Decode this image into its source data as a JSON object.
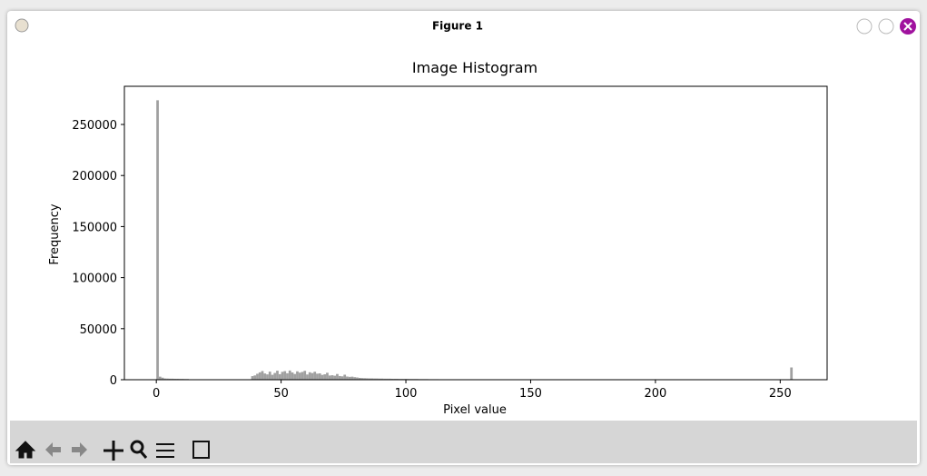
{
  "window": {
    "title": "Figure 1"
  },
  "chart_data": {
    "type": "histogram",
    "title": "Image Histogram",
    "x_label": "Pixel value",
    "y_label": "Frequency",
    "color": "#a0a0a0",
    "bins": [
      0,
      1,
      2,
      3,
      4,
      5,
      6,
      7,
      8,
      9,
      10,
      11,
      12,
      13,
      14,
      15,
      16,
      17,
      18,
      19,
      20,
      21,
      22,
      23,
      24,
      25,
      26,
      27,
      28,
      29,
      30,
      31,
      32,
      33,
      34,
      35,
      36,
      37,
      38,
      39,
      40,
      41,
      42,
      43,
      44,
      45,
      46,
      47,
      48,
      49,
      50,
      51,
      52,
      53,
      54,
      55,
      56,
      57,
      58,
      59,
      60,
      61,
      62,
      63,
      64,
      65,
      66,
      67,
      68,
      69,
      70,
      71,
      72,
      73,
      74,
      75,
      76,
      77,
      78,
      79,
      80,
      81,
      82,
      83,
      84,
      85,
      86,
      87,
      88,
      89,
      90,
      91,
      92,
      93,
      94,
      95,
      96,
      97,
      98,
      99,
      100,
      101,
      102,
      103,
      104,
      105,
      106,
      107,
      108,
      109,
      110,
      111,
      112,
      113,
      114,
      115,
      116,
      117,
      118,
      119,
      120,
      121,
      122,
      123,
      124,
      125,
      126,
      127,
      128,
      129,
      130,
      131,
      132,
      133,
      134,
      135,
      136,
      137,
      138,
      139,
      140,
      141,
      142,
      143,
      144,
      145,
      146,
      147,
      148,
      149,
      150,
      151,
      152,
      153,
      154,
      155,
      156,
      157,
      158,
      159,
      160,
      161,
      162,
      163,
      164,
      165,
      166,
      167,
      168,
      169,
      170,
      171,
      172,
      173,
      174,
      175,
      176,
      177,
      178,
      179,
      180,
      181,
      182,
      183,
      184,
      185,
      186,
      187,
      188,
      189,
      190,
      191,
      192,
      193,
      194,
      195,
      196,
      197,
      198,
      199,
      200,
      201,
      202,
      203,
      204,
      205,
      206,
      207,
      208,
      209,
      210,
      211,
      212,
      213,
      214,
      215,
      216,
      217,
      218,
      219,
      220,
      221,
      222,
      223,
      224,
      225,
      226,
      227,
      228,
      229,
      230,
      231,
      232,
      233,
      234,
      235,
      236,
      237,
      238,
      239,
      240,
      241,
      242,
      243,
      244,
      245,
      246,
      247,
      248,
      249,
      250,
      251,
      252,
      253,
      254,
      255,
      256
    ],
    "values": [
      273700,
      3000,
      2000,
      1200,
      1100,
      1000,
      1000,
      900,
      900,
      800,
      800,
      700,
      700,
      300,
      300,
      300,
      300,
      300,
      300,
      300,
      300,
      300,
      300,
      300,
      300,
      300,
      300,
      300,
      300,
      300,
      300,
      300,
      300,
      300,
      300,
      300,
      300,
      300,
      3500,
      4200,
      5800,
      7200,
      8500,
      6100,
      5200,
      7900,
      4800,
      6600,
      8800,
      5400,
      7700,
      8400,
      6300,
      9000,
      7100,
      5600,
      8200,
      6900,
      7600,
      8700,
      5100,
      7300,
      6500,
      7800,
      5900,
      6200,
      4700,
      5300,
      6800,
      4100,
      4400,
      3900,
      5600,
      3600,
      3300,
      4900,
      3100,
      2800,
      3000,
      2500,
      2200,
      1800,
      1600,
      1500,
      1400,
      1300,
      1300,
      1200,
      1200,
      1100,
      1100,
      1000,
      1000,
      1000,
      900,
      900,
      900,
      800,
      800,
      800,
      800,
      700,
      700,
      700,
      700,
      600,
      600,
      600,
      600,
      500,
      500,
      500,
      500,
      100,
      100,
      100,
      100,
      100,
      100,
      100,
      100,
      100,
      100,
      100,
      100,
      100,
      100,
      100,
      100,
      100,
      100,
      100,
      100,
      100,
      100,
      100,
      100,
      100,
      100,
      100,
      100,
      100,
      100,
      100,
      100,
      100,
      100,
      100,
      100,
      100,
      100,
      100,
      100,
      100,
      100,
      100,
      100,
      100,
      100,
      100,
      100,
      100,
      100,
      100,
      100,
      100,
      100,
      100,
      100,
      100,
      100,
      100,
      100,
      100,
      100,
      100,
      100,
      100,
      100,
      100,
      100,
      100,
      100,
      100,
      100,
      100,
      100,
      100,
      100,
      100,
      100,
      100,
      100,
      100,
      100,
      100,
      100,
      100,
      100,
      100,
      100,
      100,
      100,
      100,
      100,
      100,
      100,
      100,
      100,
      100,
      100,
      100,
      100,
      100,
      100,
      100,
      100,
      100,
      100,
      100,
      100,
      100,
      100,
      100,
      100,
      100,
      100,
      100,
      100,
      100,
      100,
      100,
      100,
      100,
      100,
      100,
      100,
      100,
      100,
      100,
      100,
      100,
      100,
      100,
      100,
      100,
      100,
      100,
      100,
      100,
      100,
      100,
      100,
      100,
      12000,
      200
    ],
    "xlim": [
      -12.8,
      268.8
    ],
    "ylim": [
      0,
      287385
    ],
    "xticks": [
      0,
      50,
      100,
      150,
      200,
      250
    ],
    "yticks": [
      0,
      50000,
      100000,
      150000,
      200000,
      250000
    ]
  }
}
